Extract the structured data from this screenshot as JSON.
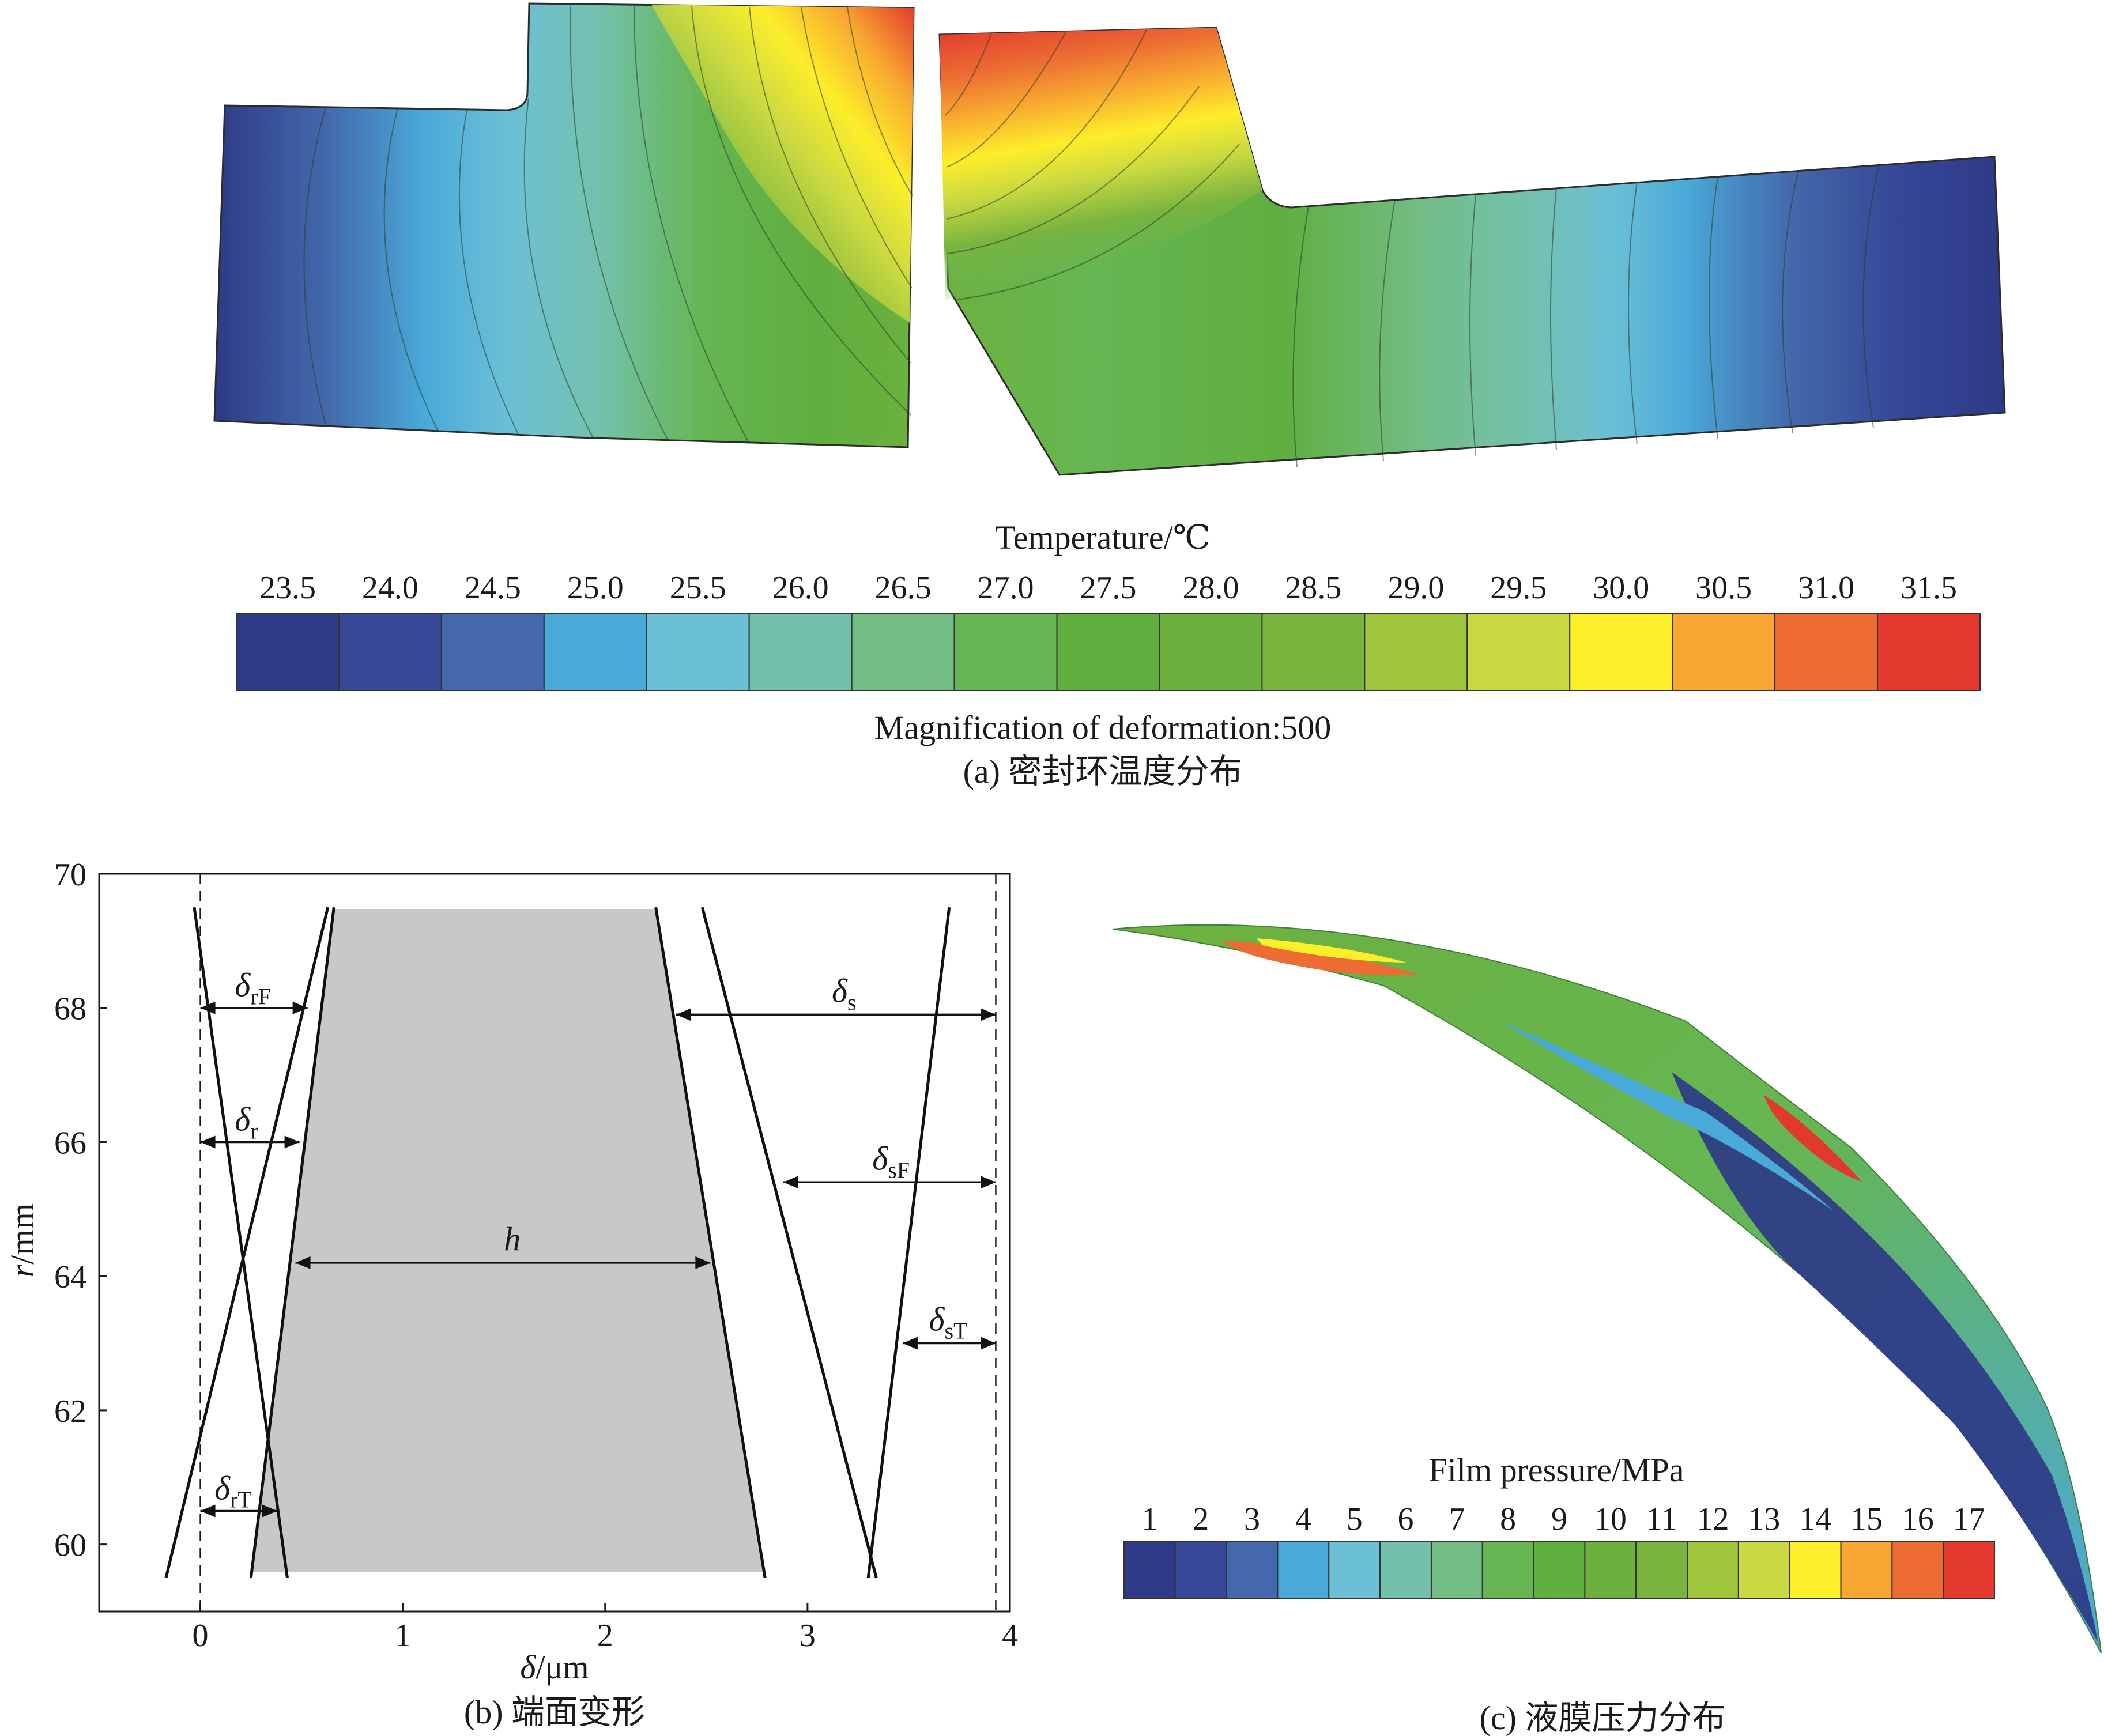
{
  "panel_a": {
    "legend_title": "Temperature/℃",
    "tick_labels": [
      "23.5",
      "24.0",
      "24.5",
      "25.0",
      "25.5",
      "26.0",
      "26.5",
      "27.0",
      "27.5",
      "28.0",
      "28.5",
      "29.0",
      "29.5",
      "30.0",
      "30.5",
      "31.0",
      "31.5"
    ],
    "colors": [
      "#2e3a87",
      "#354796",
      "#4468ab",
      "#49a9d8",
      "#6cc0d6",
      "#73c1ac",
      "#72bd84",
      "#65b653",
      "#5fae3f",
      "#6cb13e",
      "#7ab43f",
      "#9ec53c",
      "#cad941",
      "#fdee2a",
      "#f8a631",
      "#ec6c33",
      "#e2382d"
    ],
    "magnification": "Magnification of deformation:500",
    "caption": "(a) 密封环温度分布"
  },
  "panel_b": {
    "caption": "(b) 端面变形",
    "xlabel": "δ/μm",
    "ylabel": "r/mm",
    "labels": {
      "h": "h",
      "delta": "δ",
      "rF": "rF",
      "r": "r",
      "rT": "rT",
      "s": "s",
      "sF": "sF",
      "sT": "sT"
    },
    "chart_data": {
      "type": "line",
      "xlabel": "δ/μm",
      "ylabel": "r/mm",
      "xlim": [
        -0.5,
        4.0
      ],
      "ylim": [
        59,
        70
      ],
      "xticks": [
        0,
        1,
        2,
        3,
        4
      ],
      "yticks": [
        60,
        62,
        64,
        66,
        68,
        70
      ],
      "grid": false,
      "series": [
        {
          "name": "rF",
          "points": [
            [
              -0.17,
              59.5
            ],
            [
              0.63,
              69.5
            ]
          ]
        },
        {
          "name": "rT",
          "points": [
            [
              -0.03,
              69.5
            ],
            [
              0.43,
              59.5
            ]
          ]
        },
        {
          "name": "r",
          "points": [
            [
              0.25,
              59.5
            ],
            [
              0.66,
              69.5
            ]
          ]
        },
        {
          "name": "s",
          "points": [
            [
              2.25,
              69.5
            ],
            [
              2.79,
              59.5
            ]
          ]
        },
        {
          "name": "sF",
          "points": [
            [
              2.48,
              69.5
            ],
            [
              3.34,
              59.5
            ]
          ]
        },
        {
          "name": "sT",
          "points": [
            [
              3.3,
              59.5
            ],
            [
              3.7,
              69.5
            ]
          ]
        }
      ],
      "reference_lines_x": [
        0,
        3.93
      ],
      "annotations": [
        {
          "label": "δrF",
          "r": 68.0,
          "from": 0.0,
          "to": 0.53
        },
        {
          "label": "δr",
          "r": 66.0,
          "from": 0.0,
          "to": 0.49
        },
        {
          "label": "h",
          "r": 64.2,
          "from": 0.47,
          "to": 2.52
        },
        {
          "label": "δrT",
          "r": 60.5,
          "from": 0.0,
          "to": 0.38
        },
        {
          "label": "δs",
          "r": 67.9,
          "from": 2.35,
          "to": 3.93
        },
        {
          "label": "δsF",
          "r": 65.4,
          "from": 2.88,
          "to": 3.93
        },
        {
          "label": "δsT",
          "r": 63.0,
          "from": 3.47,
          "to": 3.93
        }
      ]
    }
  },
  "panel_c": {
    "legend_title": "Film pressure/MPa",
    "tick_labels": [
      "1",
      "2",
      "3",
      "4",
      "5",
      "6",
      "7",
      "8",
      "9",
      "10",
      "11",
      "12",
      "13",
      "14",
      "15",
      "16",
      "17"
    ],
    "colors": [
      "#2e3a87",
      "#354796",
      "#4468ab",
      "#49a9d8",
      "#6cc0d6",
      "#73c1ac",
      "#72bd84",
      "#65b653",
      "#5fae3f",
      "#6cb13e",
      "#7ab43f",
      "#9ec53c",
      "#cad941",
      "#fdee2a",
      "#f8a631",
      "#ec6c33",
      "#e2382d"
    ],
    "caption": "(c) 液膜压力分布"
  }
}
